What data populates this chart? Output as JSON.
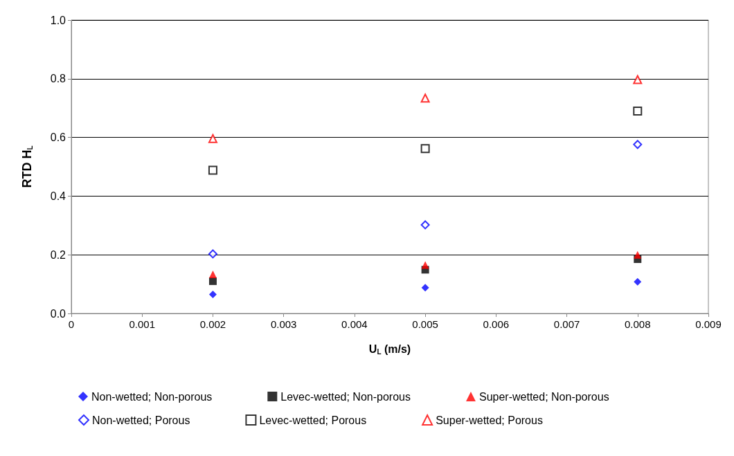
{
  "chart_data": {
    "type": "scatter",
    "xlabel": "U$_{L}$ (m/s)",
    "ylabel": "RTD H$_{L}$",
    "x": [
      0.002,
      0.005,
      0.008
    ],
    "series": [
      {
        "name": "Non-wetted; Non-porous",
        "color": "#0000ff",
        "marker": "diamond",
        "values": [
          0.065,
          0.088,
          0.108
        ]
      },
      {
        "name": "Levec-wetted; Non-porous",
        "color": "#000000",
        "marker": "square",
        "values": [
          0.11,
          0.149,
          0.185
        ]
      },
      {
        "name": "Super-wetted; Non-porous",
        "color": "#ff0000",
        "marker": "triangle",
        "values": [
          0.133,
          0.165,
          0.2
        ]
      },
      {
        "name": "Non-wetted; Porous",
        "color": "#0000ff",
        "marker": "diamond",
        "values": [
          0.203,
          0.302,
          0.576
        ]
      },
      {
        "name": "Levec-wetted; Porous",
        "color": "#000000",
        "marker": "square",
        "values": [
          0.488,
          0.562,
          0.69
        ]
      },
      {
        "name": "Super-wetted; Porous",
        "color": "#ff0000",
        "marker": "triangle",
        "values": [
          0.596,
          0.734,
          0.797
        ]
      }
    ],
    "xlim": [
      0,
      0.009
    ],
    "xticks": [
      0,
      0.001,
      0.002,
      0.003,
      0.004,
      0.005,
      0.006,
      0.007,
      0.008,
      0.009
    ],
    "ylim": [
      0,
      1
    ],
    "yticks": [
      {
        "value": 0,
        "label": "0.0"
      },
      {
        "value": 0.2,
        "label": "0.2"
      },
      {
        "value": 0.4,
        "label": "0.4"
      },
      {
        "value": 0.6,
        "label": "0.6"
      },
      {
        "value": 0.8,
        "label": "0.8"
      },
      {
        "value": 1,
        "label": "1.0"
      }
    ],
    "grid": "y",
    "legend": "bottom"
  }
}
